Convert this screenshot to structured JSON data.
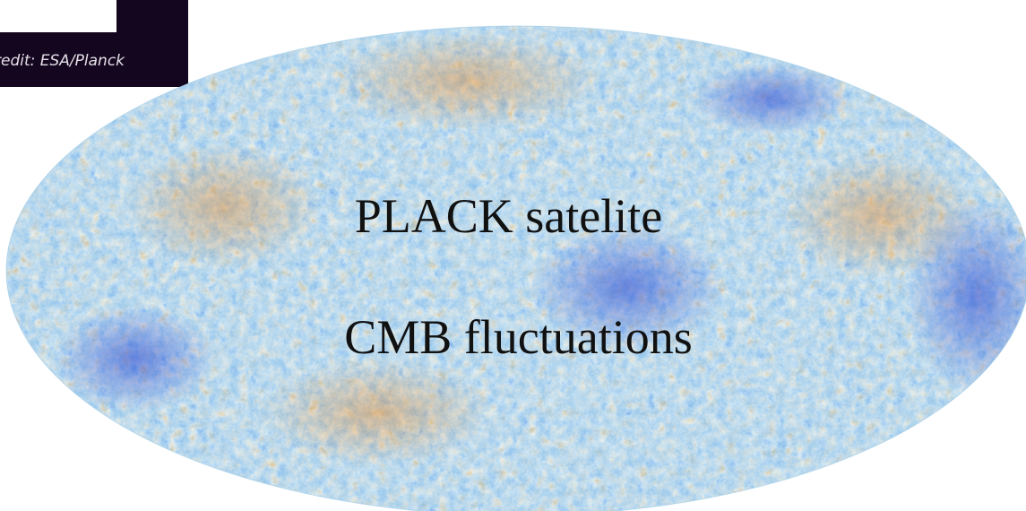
{
  "image": {
    "credit": "redit: ESA/Planck",
    "subject": "cmb-sky-map",
    "caption_line1": "PLACK satelite",
    "caption_line2": "CMB fluctuations"
  },
  "colors": {
    "deep_blue": "#1f3fcf",
    "blue": "#4f8ee8",
    "light_blue": "#a9d3ee",
    "pale": "#f2e6c4",
    "orange": "#e8a24a",
    "red_brown": "#b4541c",
    "credit_bg": "#14061f"
  }
}
